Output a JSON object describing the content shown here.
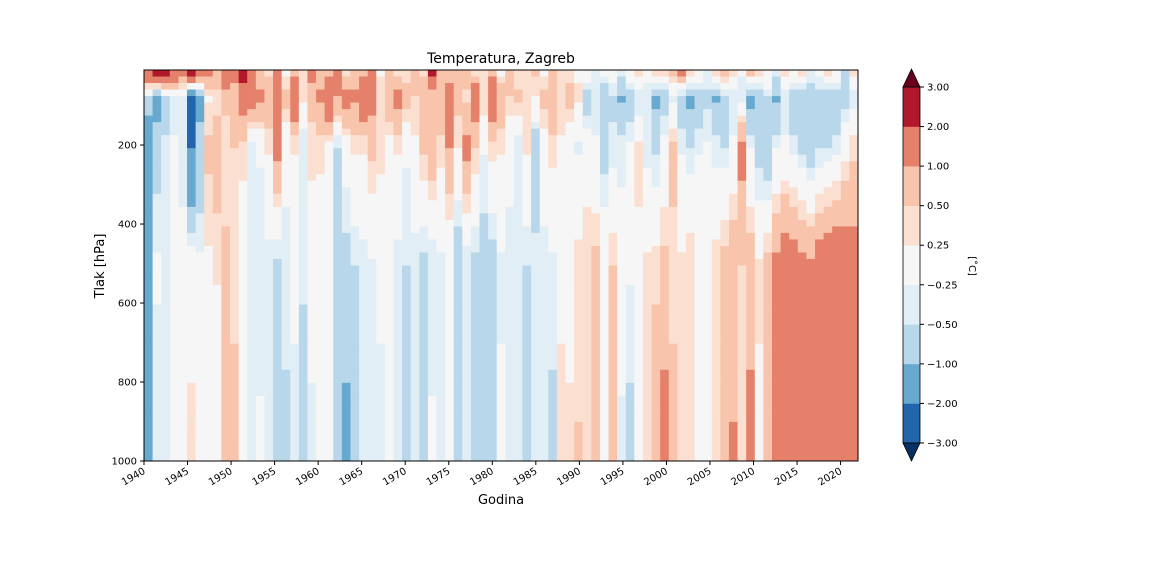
{
  "chart_data": {
    "type": "heatmap",
    "title": "Temperatura, Zagreb",
    "xlabel": "Godina",
    "ylabel": "Tlak [hPa]",
    "xlim": [
      1940,
      2022
    ],
    "ylim": [
      1000,
      10
    ],
    "x_ticks": [
      "1940",
      "1945",
      "1950",
      "1955",
      "1960",
      "1965",
      "1970",
      "1975",
      "1980",
      "1985",
      "1990",
      "1995",
      "2000",
      "2005",
      "2010",
      "2015",
      "2020"
    ],
    "y_ticks": [
      "200",
      "400",
      "600",
      "800",
      "1000"
    ],
    "colorbar": {
      "label": "[˚C]",
      "levels": [
        "-3.00",
        "-2.00",
        "-1.00",
        "-0.50",
        "-0.25",
        "0.25",
        "0.50",
        "1.00",
        "2.00",
        "3.00"
      ],
      "colors": [
        "#053061",
        "#2166ac",
        "#67a9cf",
        "#b8d7ea",
        "#e1eef5",
        "#f6f6f6",
        "#fbe0d1",
        "#f8c4ab",
        "#e5816a",
        "#b2182b",
        "#67001f"
      ],
      "extend": "both"
    },
    "series": [
      {
        "pressure": 900,
        "values": [
          -1.4,
          -0.4,
          -0.3,
          0.2,
          -0.1,
          0.3,
          -0.1,
          0.1,
          -0.1,
          0.5,
          0.6,
          0.2,
          -0.4,
          -0.2,
          -0.4,
          -0.6,
          -0.6,
          -0.3,
          -0.8,
          -0.3,
          0.0,
          -0.2,
          -1.0,
          -1.1,
          -0.9,
          -0.5,
          -0.4,
          -0.3,
          -0.1,
          -0.5,
          -0.7,
          -0.3,
          -0.7,
          -0.2,
          -0.3,
          -0.1,
          -0.7,
          -0.4,
          -0.8,
          -0.9,
          -0.6,
          -0.2,
          -0.4,
          -0.5,
          -0.7,
          -0.4,
          -0.5,
          -0.6,
          0.4,
          0.3,
          0.5,
          0.4,
          0.7,
          0.2,
          0.6,
          -0.3,
          -0.6,
          0.2,
          0.3,
          0.8,
          1.2,
          0.6,
          0.4,
          0.4,
          0.1,
          -0.1,
          0.4,
          0.6,
          1.0,
          0.4,
          1.1,
          0.2,
          0.8,
          1.3,
          1.3,
          1.5,
          1.4,
          1.2,
          1.7,
          1.6,
          1.8,
          1.5,
          1.3
        ]
      },
      {
        "pressure": 500,
        "values": [
          -1.0,
          -0.2,
          -0.3,
          -0.1,
          -0.2,
          0.1,
          -0.2,
          0.2,
          0.3,
          0.6,
          0.4,
          -0.1,
          -0.3,
          -0.5,
          -0.4,
          -0.6,
          -0.3,
          -0.2,
          -0.4,
          -0.1,
          0.1,
          -0.2,
          -0.6,
          -0.7,
          -0.5,
          -0.4,
          -0.3,
          -0.2,
          -0.1,
          -0.4,
          -0.5,
          -0.4,
          -0.6,
          -0.5,
          -0.3,
          -0.2,
          -0.9,
          -0.5,
          -0.6,
          -0.7,
          -0.7,
          -0.3,
          -0.3,
          -0.4,
          -0.5,
          -0.4,
          -0.4,
          -0.3,
          0.1,
          0.1,
          0.4,
          0.4,
          0.6,
          0.2,
          0.5,
          0.0,
          -0.2,
          0.2,
          0.3,
          0.4,
          0.6,
          0.4,
          0.3,
          0.5,
          0.2,
          0.1,
          0.4,
          0.7,
          0.9,
          0.5,
          0.8,
          0.3,
          0.7,
          1.1,
          1.4,
          1.3,
          1.2,
          1.1,
          1.4,
          1.5,
          1.6,
          1.4,
          1.3
        ]
      },
      {
        "pressure": 200,
        "values": [
          -1.8,
          -0.7,
          -0.4,
          -0.2,
          -0.3,
          -2.1,
          -0.9,
          0.6,
          0.8,
          0.3,
          0.5,
          0.4,
          -0.3,
          -0.2,
          0.3,
          1.2,
          -0.2,
          0.3,
          -0.5,
          0.4,
          0.3,
          0.2,
          -0.5,
          0.0,
          0.3,
          0.3,
          0.6,
          0.4,
          0.1,
          0.3,
          -0.2,
          0.2,
          0.6,
          0.9,
          0.4,
          1.0,
          0.3,
          1.2,
          0.5,
          -0.2,
          0.4,
          0.3,
          -0.2,
          -0.4,
          0.3,
          -0.8,
          0.1,
          0.4,
          0.2,
          -0.2,
          -0.3,
          0.1,
          -0.2,
          -0.7,
          -0.4,
          -0.4,
          -0.2,
          0.3,
          -0.4,
          -0.6,
          -0.1,
          0.6,
          -0.3,
          -0.5,
          -0.3,
          -0.2,
          -0.4,
          -0.5,
          -0.2,
          1.2,
          -0.3,
          -0.7,
          -1.0,
          -0.3,
          -0.2,
          -0.4,
          -0.6,
          -0.9,
          -0.6,
          -0.5,
          -0.4,
          0.1,
          0.4
        ]
      },
      {
        "pressure": 80,
        "values": [
          -0.6,
          -1.3,
          -0.8,
          -0.5,
          -0.4,
          -2.2,
          -1.1,
          0.2,
          0.3,
          0.6,
          0.8,
          1.4,
          1.3,
          1.2,
          0.9,
          1.5,
          0.7,
          1.6,
          0.4,
          0.6,
          1.1,
          1.7,
          1.0,
          1.3,
          1.1,
          1.6,
          1.2,
          0.5,
          0.9,
          1.2,
          0.7,
          0.5,
          1.0,
          0.6,
          0.8,
          1.3,
          0.6,
          0.4,
          1.6,
          0.5,
          1.7,
          0.9,
          0.5,
          0.6,
          0.4,
          0.2,
          0.6,
          0.9,
          0.4,
          0.7,
          0.3,
          -0.8,
          -0.4,
          -1.0,
          -0.6,
          -1.1,
          -0.9,
          -0.5,
          -0.3,
          -1.1,
          -0.7,
          -0.4,
          -0.8,
          -1.2,
          -0.9,
          -0.6,
          -1.1,
          -0.7,
          -0.5,
          -0.4,
          -1.3,
          -0.8,
          -0.6,
          -1.1,
          -0.4,
          -0.9,
          -1.0,
          -0.7,
          -0.6,
          -1.0,
          -0.8,
          -0.7,
          -0.5
        ]
      },
      {
        "pressure": 15,
        "values": [
          1.8,
          2.4,
          2.2,
          1.9,
          1.6,
          2.5,
          1.4,
          1.2,
          0.8,
          1.9,
          1.1,
          2.3,
          1.0,
          0.6,
          0.4,
          1.3,
          0.2,
          0.8,
          0.5,
          1.2,
          0.6,
          0.9,
          1.4,
          0.3,
          0.6,
          0.9,
          1.1,
          0.2,
          0.5,
          0.4,
          0.3,
          0.6,
          0.4,
          2.1,
          0.5,
          0.7,
          1.0,
          0.9,
          0.4,
          0.3,
          0.8,
          0.2,
          0.6,
          0.3,
          0.4,
          0.6,
          0.2,
          0.7,
          0.4,
          0.3,
          0.2,
          0.0,
          -0.4,
          -0.2,
          0.1,
          -0.3,
          0.2,
          0.5,
          -0.2,
          0.4,
          0.3,
          0.6,
          1.2,
          0.4,
          0.2,
          -0.3,
          0.5,
          0.8,
          0.3,
          -0.2,
          0.6,
          0.4,
          0.2,
          -0.4,
          0.3,
          0.2,
          0.4,
          -0.3,
          -0.2,
          0.5,
          0.3,
          -0.8,
          0.4
        ]
      }
    ]
  }
}
